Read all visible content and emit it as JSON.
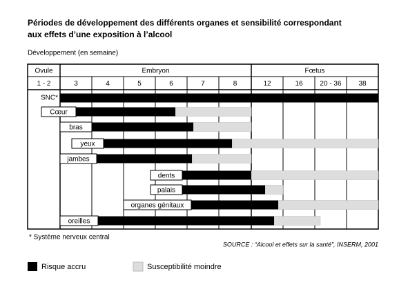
{
  "header": {
    "title_lines": [
      "Périodes de développement des différents organes et sensibilité correspondant",
      "aux effets d’une exposition à l’alcool"
    ],
    "axis_caption": "Développement (en semaine)"
  },
  "table": {
    "groups": [
      "Ovule",
      "Embryon",
      "Fœtus"
    ],
    "weeks": [
      "1 - 2",
      "3",
      "4",
      "5",
      "6",
      "7",
      "8",
      "12",
      "16",
      "20 - 36",
      "38"
    ],
    "rows": [
      "SNC*",
      "Cœur",
      "bras",
      "yeux",
      "jambes",
      "dents",
      "palais",
      "organes génitaux",
      "oreilles"
    ]
  },
  "footnote": "* Système nerveux central",
  "source": "SOURCE : “Alcool et effets sur la santé”, INSERM, 2001",
  "legend": [
    "Risque accru",
    "Susceptibilité moindre"
  ]
}
